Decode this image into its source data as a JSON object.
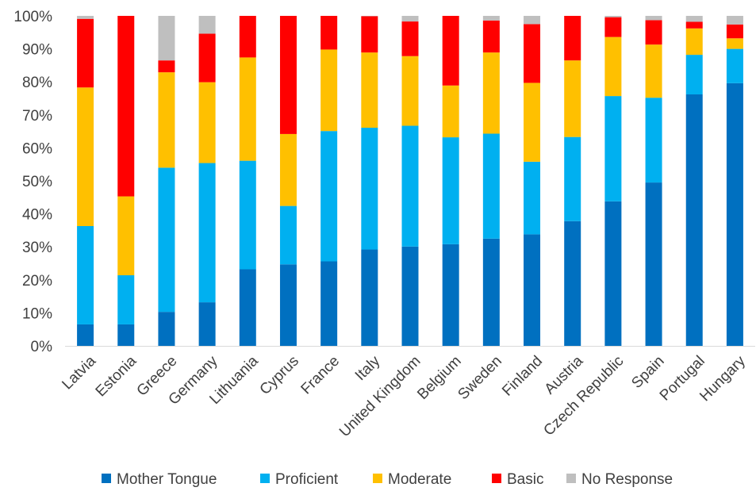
{
  "chart_data": {
    "type": "bar",
    "stacked": true,
    "orientation": "vertical",
    "grid": false,
    "legend_position": "bottom",
    "ylim": [
      0,
      100
    ],
    "yticks": [
      "0%",
      "10%",
      "20%",
      "30%",
      "40%",
      "50%",
      "60%",
      "70%",
      "80%",
      "90%",
      "100%"
    ],
    "categories": [
      "Latvia",
      "Estonia",
      "Greece",
      "Germany",
      "Lithuania",
      "Cyprus",
      "France",
      "Italy",
      "United Kingdom",
      "Belgium",
      "Sweden",
      "Finland",
      "Austria",
      "Czech Republic",
      "Spain",
      "Portugal",
      "Hungary"
    ],
    "series": [
      {
        "name": "Mother Tongue",
        "color": "#0070C0",
        "values": [
          6.5,
          6.5,
          10.3,
          13.2,
          23.2,
          24.7,
          25.6,
          29.2,
          30.1,
          30.8,
          32.5,
          33.8,
          37.8,
          43.8,
          49.5,
          76.2,
          79.6
        ]
      },
      {
        "name": "Proficient",
        "color": "#00B0F0",
        "values": [
          29.8,
          14.9,
          43.7,
          42.2,
          32.9,
          17.7,
          39.5,
          36.9,
          36.6,
          32.4,
          31.8,
          22.0,
          25.5,
          31.9,
          25.7,
          12.0,
          10.4
        ]
      },
      {
        "name": "Moderate",
        "color": "#FFC000",
        "values": [
          42.0,
          23.9,
          28.9,
          24.5,
          31.3,
          21.8,
          24.7,
          22.8,
          21.1,
          15.7,
          24.6,
          23.9,
          23.2,
          17.9,
          16.1,
          8.0,
          3.2
        ]
      },
      {
        "name": "Basic",
        "color": "#FF0000",
        "values": [
          20.8,
          54.7,
          3.6,
          14.7,
          12.6,
          35.8,
          10.2,
          11.0,
          10.5,
          21.1,
          9.7,
          17.8,
          13.5,
          6.0,
          7.4,
          2.0,
          4.2
        ]
      },
      {
        "name": "No Response",
        "color": "#BFBFBF",
        "values": [
          0.9,
          0.0,
          13.5,
          5.4,
          0.0,
          0.0,
          0.0,
          0.1,
          1.7,
          0.0,
          1.4,
          2.5,
          0.0,
          0.4,
          1.3,
          1.8,
          2.6
        ]
      }
    ]
  }
}
